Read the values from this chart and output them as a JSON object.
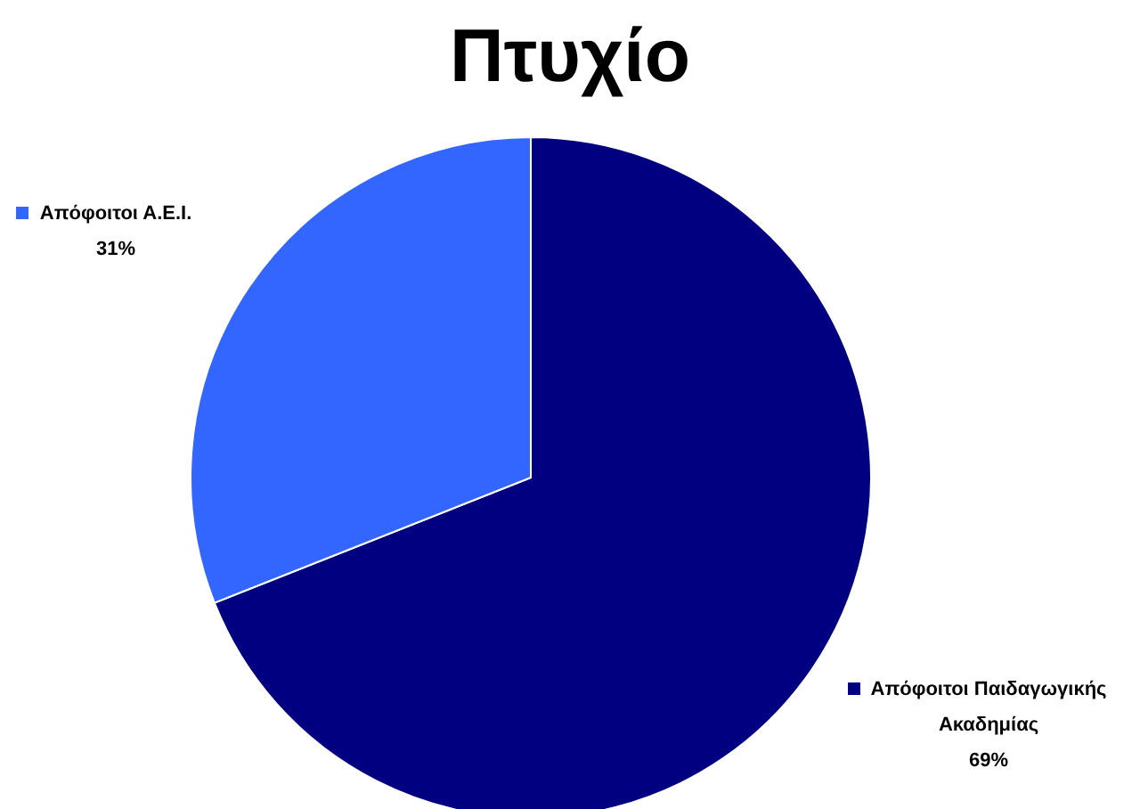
{
  "chart_data": {
    "type": "pie",
    "title": "Πτυχίο",
    "categories": [
      "Απόφοιτοι Παιδαγωγικής Ακαδημίας",
      "Απόφοιτοι Α.Ε.Ι."
    ],
    "values": [
      69,
      31
    ],
    "value_labels": [
      "69%",
      "31%"
    ],
    "colors": [
      "#000080",
      "#3366ff"
    ],
    "legend": "left"
  }
}
